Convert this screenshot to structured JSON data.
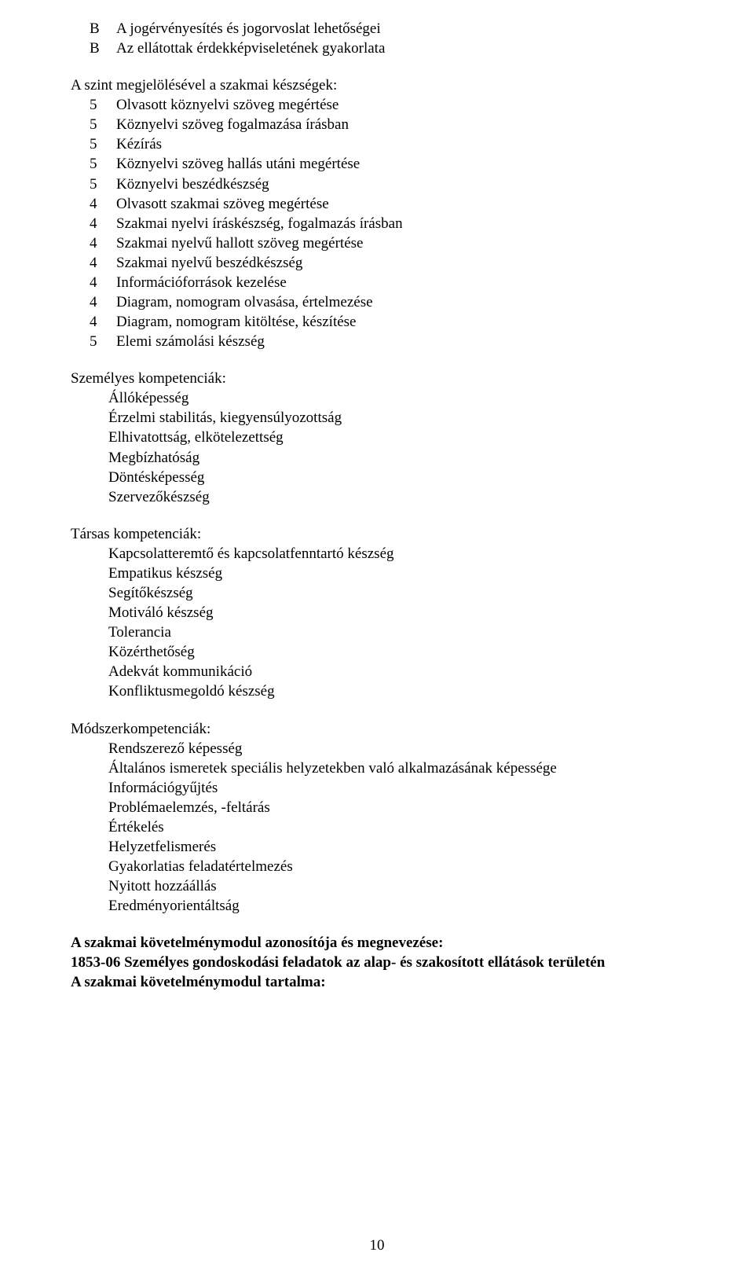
{
  "top_list": [
    {
      "prefix": "B",
      "text": "A jogérvényesítés és jogorvoslat lehetőségei"
    },
    {
      "prefix": "B",
      "text": "Az ellátottak érdekképviseletének gyakorlata"
    }
  ],
  "skills_lead": "A szint megjelölésével a szakmai készségek:",
  "skills_list": [
    {
      "prefix": "5",
      "text": "Olvasott köznyelvi szöveg megértése"
    },
    {
      "prefix": "5",
      "text": "Köznyelvi szöveg fogalmazása írásban"
    },
    {
      "prefix": "5",
      "text": "Kézírás"
    },
    {
      "prefix": "5",
      "text": "Köznyelvi szöveg hallás utáni megértése"
    },
    {
      "prefix": "5",
      "text": "Köznyelvi beszédkészség"
    },
    {
      "prefix": "4",
      "text": "Olvasott szakmai szöveg megértése"
    },
    {
      "prefix": "4",
      "text": "Szakmai nyelvi íráskészség, fogalmazás írásban"
    },
    {
      "prefix": "4",
      "text": "Szakmai nyelvű hallott szöveg megértése"
    },
    {
      "prefix": "4",
      "text": "Szakmai nyelvű beszédkészség"
    },
    {
      "prefix": "4",
      "text": "Információforrások kezelése"
    },
    {
      "prefix": "4",
      "text": "Diagram, nomogram olvasása, értelmezése"
    },
    {
      "prefix": "4",
      "text": "Diagram, nomogram kitöltése, készítése"
    },
    {
      "prefix": "5",
      "text": "Elemi számolási készség"
    }
  ],
  "personal": {
    "title": "Személyes kompetenciák:",
    "items": [
      "Állóképesség",
      "Érzelmi stabilitás, kiegyensúlyozottság",
      "Elhivatottság, elkötelezettség",
      "Megbízhatóság",
      "Döntésképesség",
      "Szervezőkészség"
    ]
  },
  "social": {
    "title": "Társas kompetenciák:",
    "items": [
      "Kapcsolatteremtő és kapcsolatfenntartó készség",
      "Empatikus készség",
      "Segítőkészség",
      "Motiváló készség",
      "Tolerancia",
      "Közérthetőség",
      "Adekvát kommunikáció",
      "Konfliktusmegoldó készség"
    ]
  },
  "method": {
    "title": "Módszerkompetenciák:",
    "items": [
      "Rendszerező képesség",
      "Általános ismeretek speciális helyzetekben való alkalmazásának képessége",
      "Információgyűjtés",
      "Problémaelemzés, -feltárás",
      "Értékelés",
      "Helyzetfelismerés",
      "Gyakorlatias feladatértelmezés",
      "Nyitott hozzáállás",
      "Eredményorientáltság"
    ]
  },
  "footer": {
    "line1": "A szakmai követelménymodul azonosítója és megnevezése:",
    "line2": "1853-06 Személyes gondoskodási feladatok az alap- és szakosított ellátások területén",
    "line3": "A szakmai követelménymodul tartalma:"
  },
  "page_number": "10"
}
